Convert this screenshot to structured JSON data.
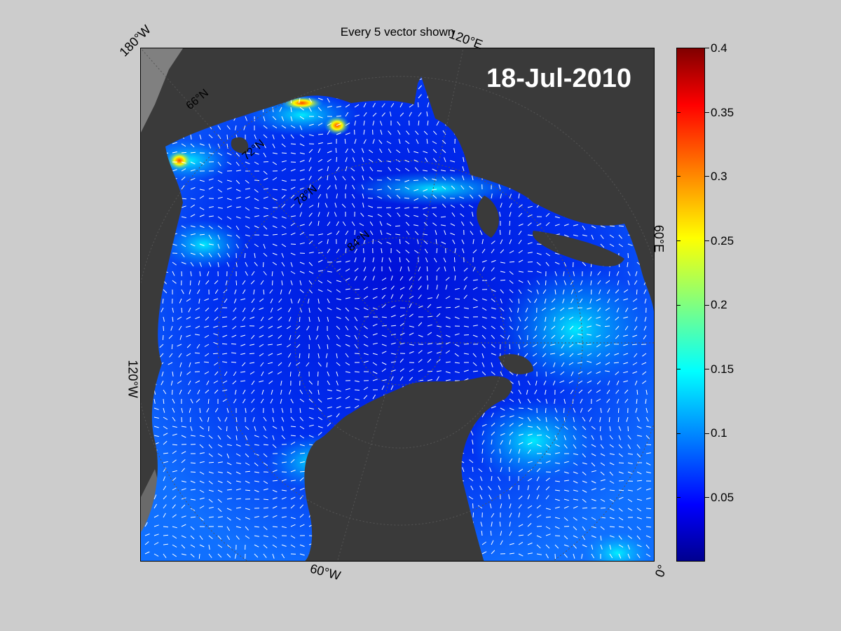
{
  "title": "Every 5 vector shown",
  "date": "18-Jul-2010",
  "longitude_labels": {
    "top_left": "180°W",
    "top_right": "120°E",
    "right": "60°E",
    "bottom_right": "0°",
    "bottom": "60°W",
    "left": "120°W"
  },
  "latitude_labels": [
    "66°N",
    "72°N",
    "78°N",
    "84°N"
  ],
  "colorbar": {
    "ticks": [
      "0.4",
      "0.35",
      "0.3",
      "0.25",
      "0.2",
      "0.15",
      "0.1",
      "0.05"
    ],
    "tick_values": [
      0.4,
      0.35,
      0.3,
      0.25,
      0.2,
      0.15,
      0.1,
      0.05
    ],
    "range": [
      0,
      0.4
    ],
    "colormap": "jet"
  },
  "colors": {
    "background": "#cccccc",
    "land": "#3a3a3a",
    "outside_domain": "#808080",
    "ocean_low": "#0000ff",
    "ocean_mid": "#0080ff",
    "vectors": "#ffffff"
  }
}
